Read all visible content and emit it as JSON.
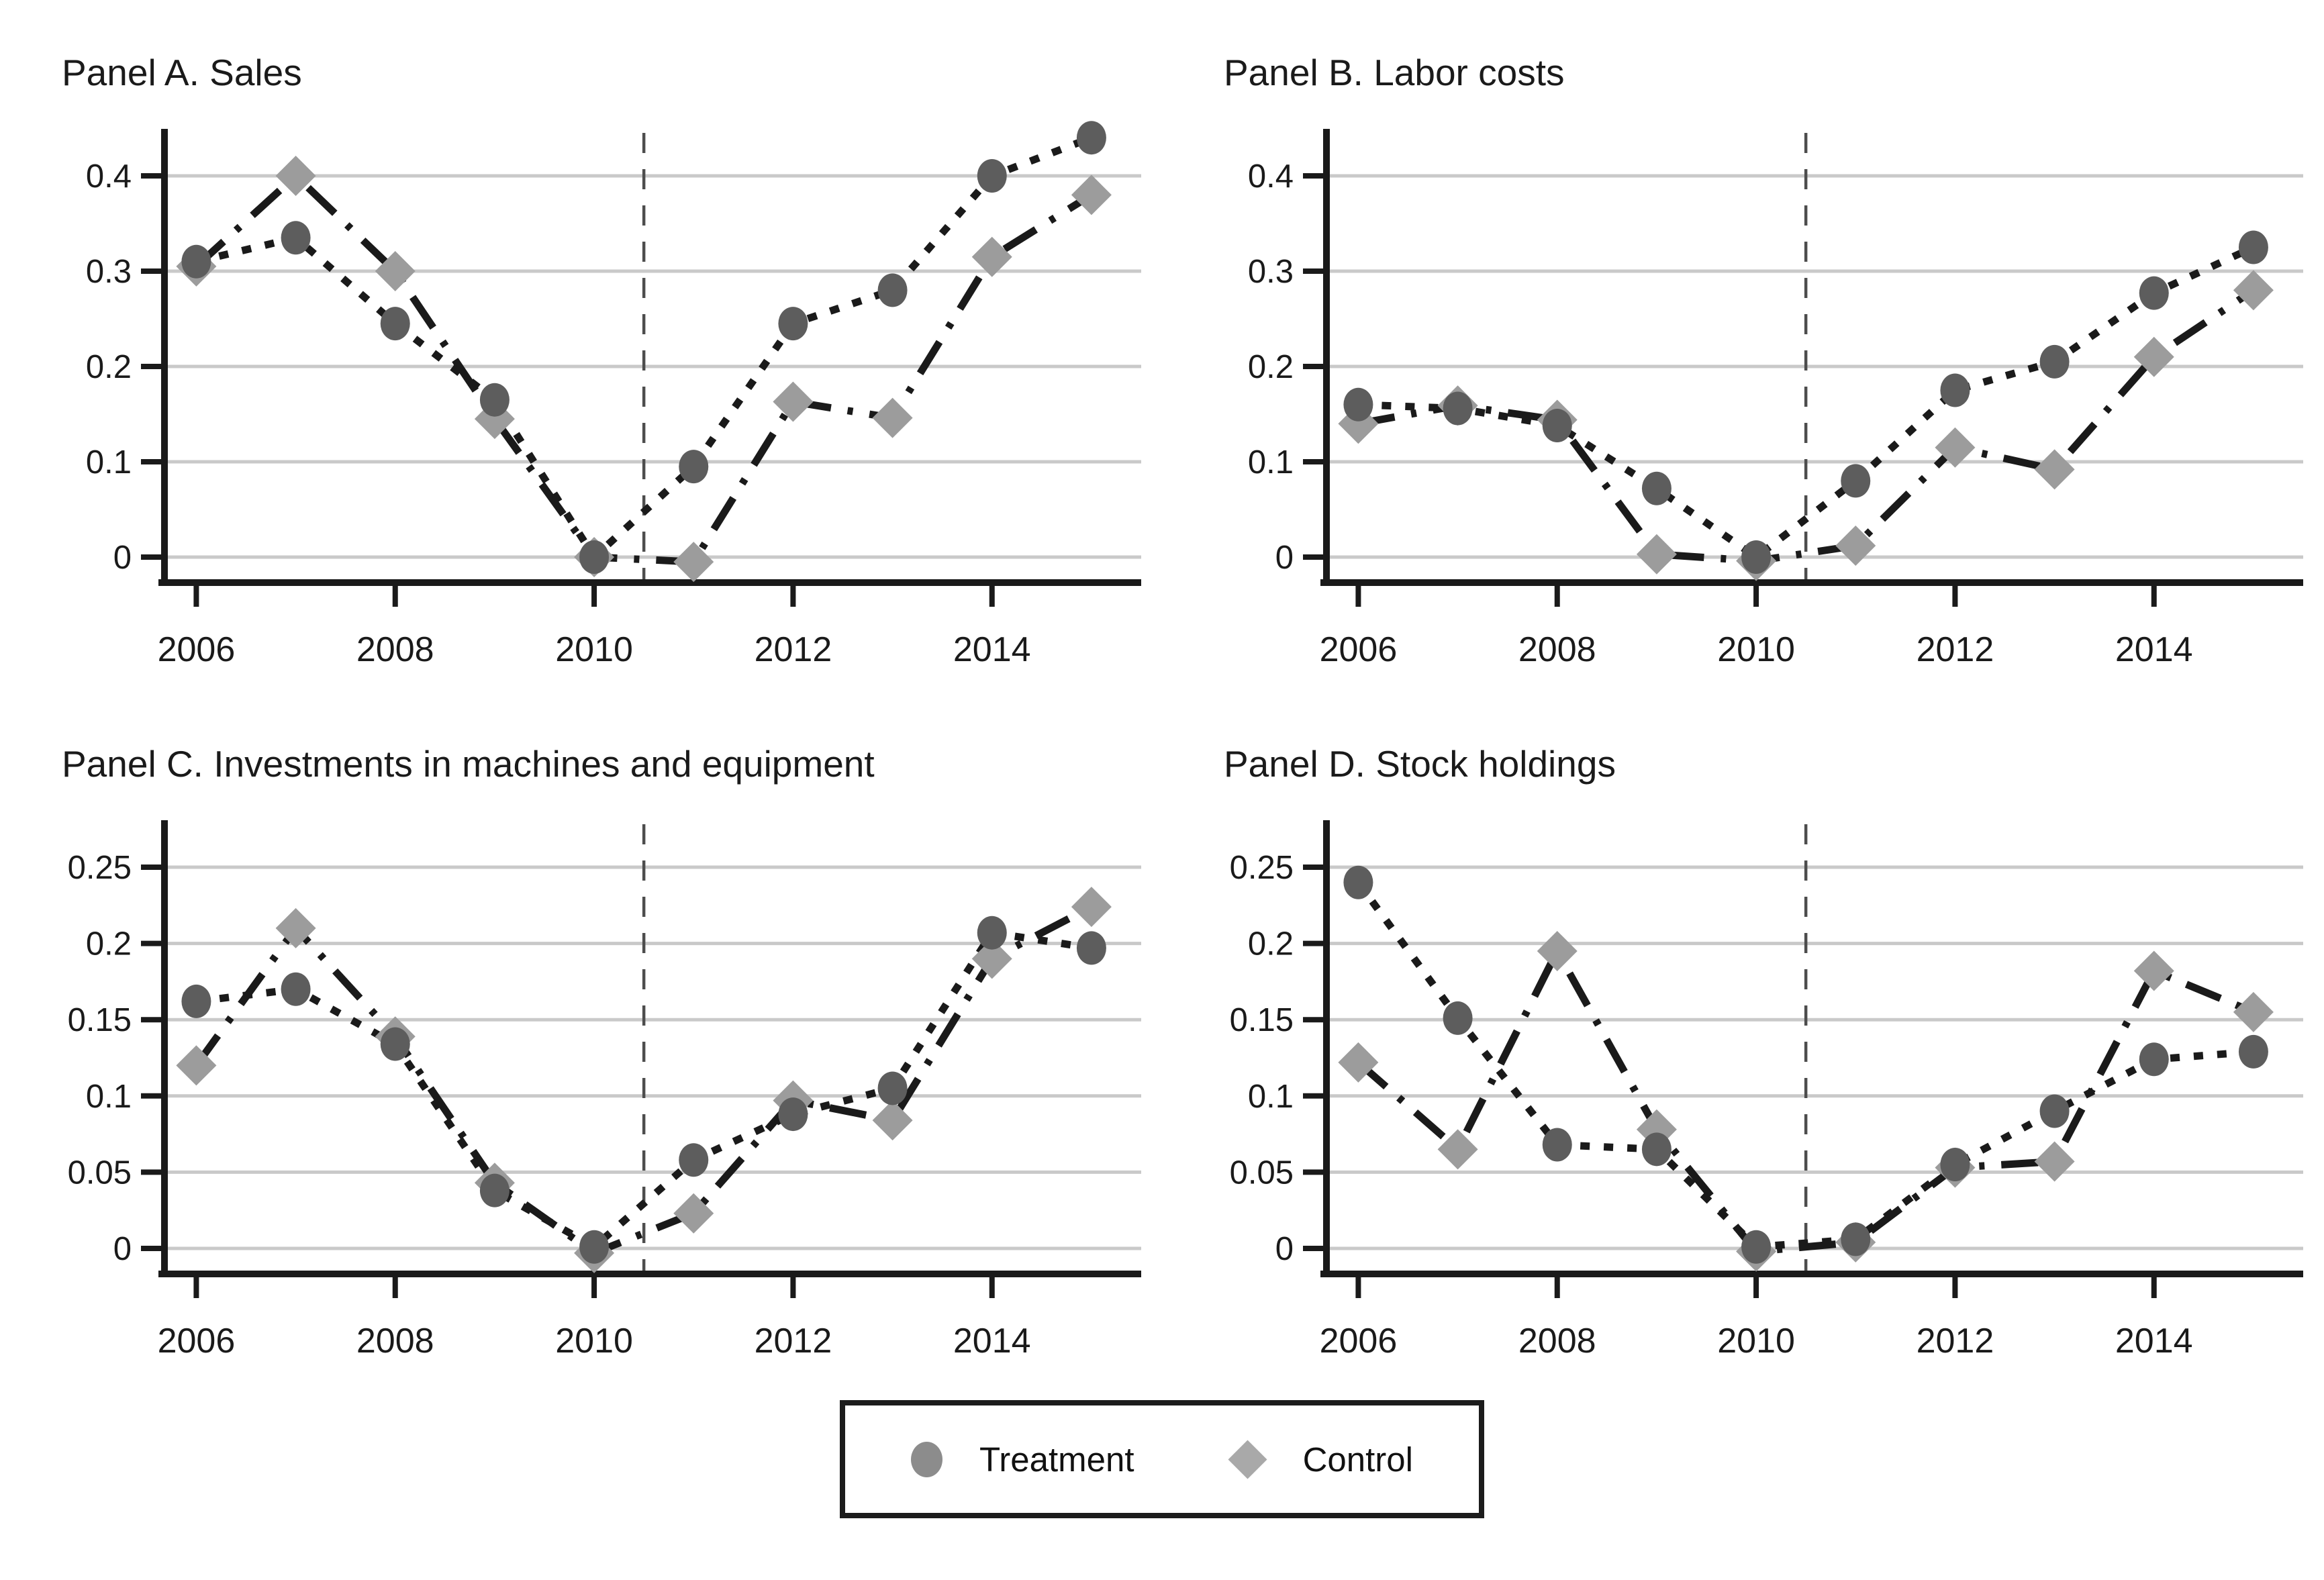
{
  "legend": {
    "treatment_label": "Treatment",
    "control_label": "Control"
  },
  "colors": {
    "line": "#1a1a1a",
    "treatment_marker": "#5d5d5d",
    "control_marker": "#9c9c9c",
    "gridline": "#c9c9c9",
    "vline": "#4d4d4d",
    "axis": "#1a1a1a",
    "tick_text": "#1a1a1a"
  },
  "chart_data": [
    {
      "type": "line",
      "title": "Panel A. Sales",
      "x": [
        2006,
        2007,
        2008,
        2009,
        2010,
        2011,
        2012,
        2013,
        2014,
        2015
      ],
      "series": [
        {
          "name": "Treatment",
          "marker": "circle",
          "line_style": "dotted",
          "values": [
            0.31,
            0.335,
            0.245,
            0.165,
            0.0,
            0.095,
            0.245,
            0.28,
            0.4,
            0.44
          ]
        },
        {
          "name": "Control",
          "marker": "diamond",
          "line_style": "dashdot",
          "values": [
            0.305,
            0.4,
            0.3,
            0.145,
            0.0,
            -0.005,
            0.163,
            0.146,
            0.315,
            0.38
          ]
        }
      ],
      "yticks": [
        0,
        0.1,
        0.2,
        0.3,
        0.4
      ],
      "ytick_labels": [
        "0",
        "0.1",
        "0.2",
        "0.3",
        "0.4"
      ],
      "xticks": [
        2006,
        2008,
        2010,
        2012,
        2014
      ],
      "xtick_labels": [
        "2006",
        "2008",
        "2010",
        "2012",
        "2014"
      ],
      "xlim": [
        2005.68,
        2015.5
      ],
      "vline_x": 2010.5,
      "grid": true,
      "legend_position": "shared-bottom"
    },
    {
      "type": "line",
      "title": "Panel B. Labor costs",
      "x": [
        2006,
        2007,
        2008,
        2009,
        2010,
        2011,
        2012,
        2013,
        2014,
        2015
      ],
      "series": [
        {
          "name": "Treatment",
          "marker": "circle",
          "line_style": "dotted",
          "values": [
            0.16,
            0.156,
            0.138,
            0.072,
            0.0,
            0.08,
            0.175,
            0.205,
            0.277,
            0.325
          ]
        },
        {
          "name": "Control",
          "marker": "diamond",
          "line_style": "dashdot",
          "values": [
            0.14,
            0.159,
            0.144,
            0.003,
            -0.004,
            0.012,
            0.115,
            0.092,
            0.21,
            0.28
          ]
        }
      ],
      "yticks": [
        0,
        0.1,
        0.2,
        0.3,
        0.4
      ],
      "ytick_labels": [
        "0",
        "0.1",
        "0.2",
        "0.3",
        "0.4"
      ],
      "xticks": [
        2006,
        2008,
        2010,
        2012,
        2014
      ],
      "xtick_labels": [
        "2006",
        "2008",
        "2010",
        "2012",
        "2014"
      ],
      "xlim": [
        2005.68,
        2015.5
      ],
      "vline_x": 2010.5,
      "grid": true,
      "legend_position": "shared-bottom"
    },
    {
      "type": "line",
      "title": "Panel C. Investments in machines and equipment",
      "x": [
        2006,
        2007,
        2008,
        2009,
        2010,
        2011,
        2012,
        2013,
        2014,
        2015
      ],
      "series": [
        {
          "name": "Treatment",
          "marker": "circle",
          "line_style": "dotted",
          "values": [
            0.162,
            0.17,
            0.134,
            0.038,
            0.001,
            0.058,
            0.088,
            0.105,
            0.207,
            0.197
          ]
        },
        {
          "name": "Control",
          "marker": "diamond",
          "line_style": "dashdot",
          "values": [
            0.12,
            0.21,
            0.139,
            0.043,
            -0.003,
            0.023,
            0.097,
            0.084,
            0.19,
            0.224
          ]
        }
      ],
      "yticks": [
        0,
        0.05,
        0.1,
        0.15,
        0.2,
        0.25
      ],
      "ytick_labels": [
        "0",
        "0.05",
        "0.1",
        "0.15",
        "0.2",
        "0.25"
      ],
      "xticks": [
        2006,
        2008,
        2010,
        2012,
        2014
      ],
      "xtick_labels": [
        "2006",
        "2008",
        "2010",
        "2012",
        "2014"
      ],
      "xlim": [
        2005.68,
        2015.5
      ],
      "vline_x": 2010.5,
      "grid": true,
      "legend_position": "shared-bottom"
    },
    {
      "type": "line",
      "title": "Panel D. Stock holdings",
      "x": [
        2006,
        2007,
        2008,
        2009,
        2010,
        2011,
        2012,
        2013,
        2014,
        2015
      ],
      "series": [
        {
          "name": "Treatment",
          "marker": "circle",
          "line_style": "dotted",
          "values": [
            0.24,
            0.151,
            0.068,
            0.065,
            0.001,
            0.006,
            0.055,
            0.09,
            0.124,
            0.129
          ]
        },
        {
          "name": "Control",
          "marker": "diamond",
          "line_style": "dashdot",
          "values": [
            0.122,
            0.065,
            0.195,
            0.078,
            -0.002,
            0.004,
            0.053,
            0.057,
            0.182,
            0.155
          ]
        }
      ],
      "yticks": [
        0,
        0.05,
        0.1,
        0.15,
        0.2,
        0.25
      ],
      "ytick_labels": [
        "0",
        "0.05",
        "0.1",
        "0.15",
        "0.2",
        "0.25"
      ],
      "xticks": [
        2006,
        2008,
        2010,
        2012,
        2014
      ],
      "xtick_labels": [
        "2006",
        "2008",
        "2010",
        "2012",
        "2014"
      ],
      "xlim": [
        2005.68,
        2015.5
      ],
      "vline_x": 2010.5,
      "grid": true,
      "legend_position": "shared-bottom"
    }
  ]
}
